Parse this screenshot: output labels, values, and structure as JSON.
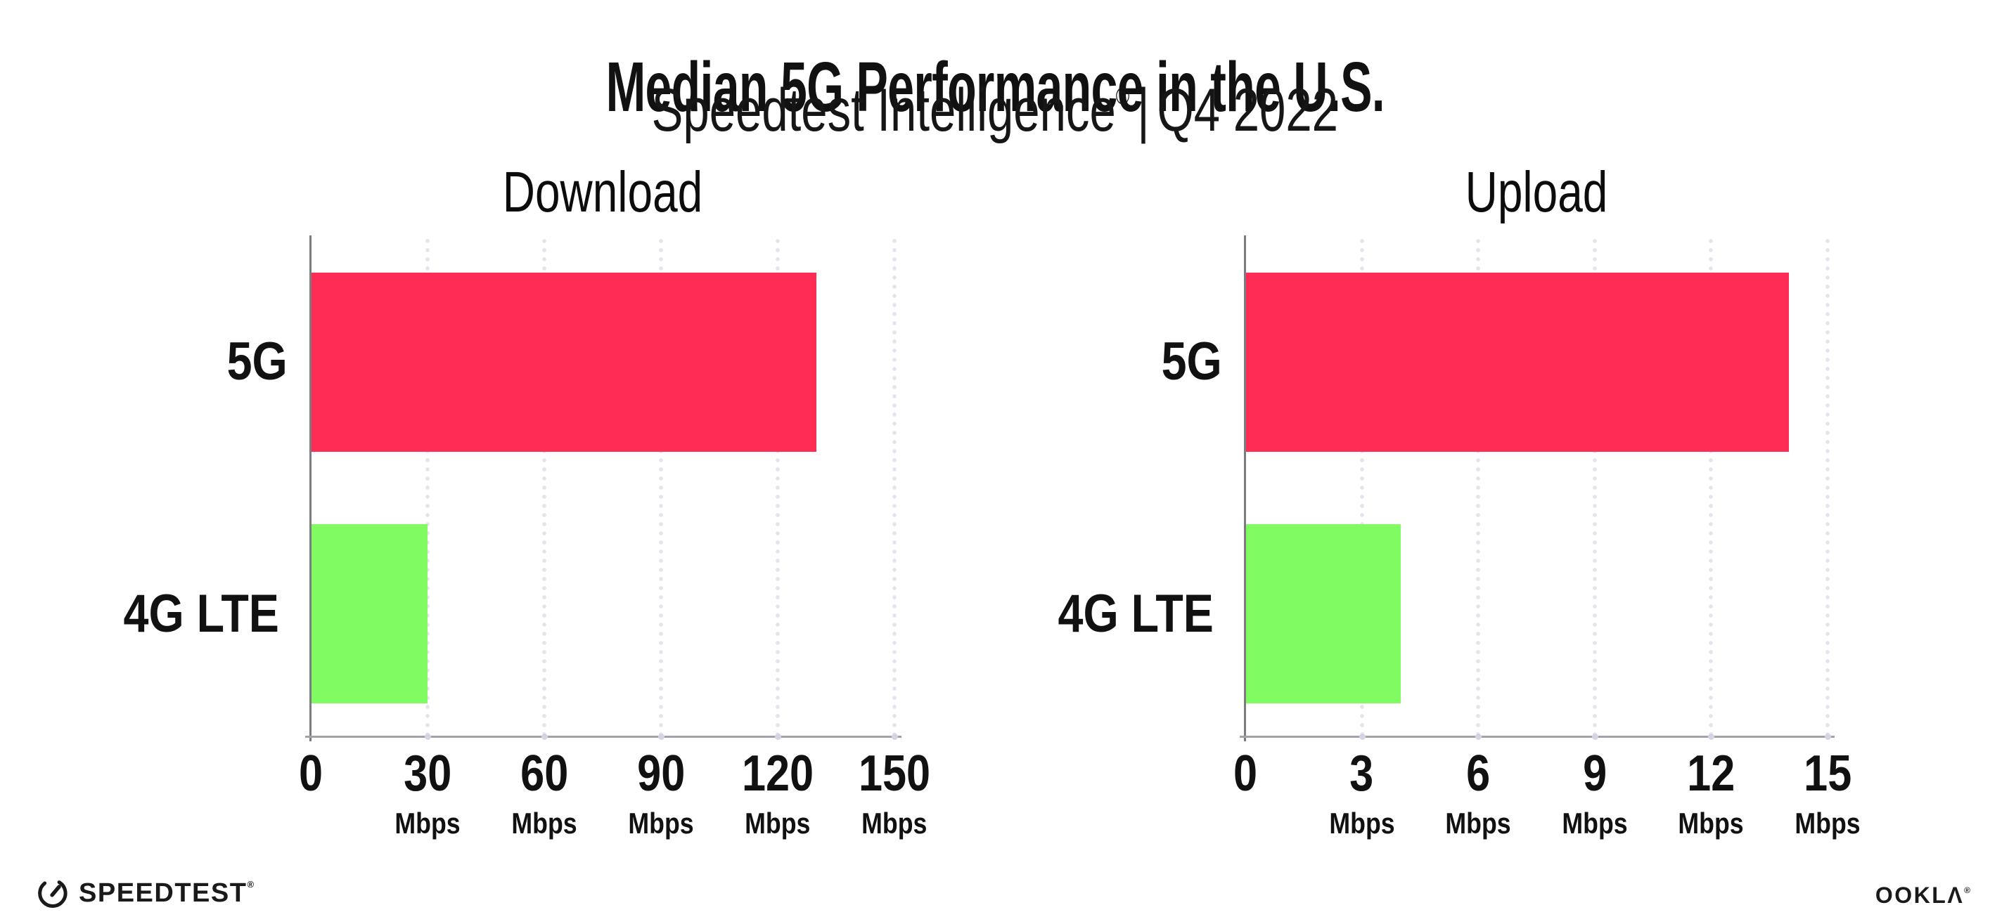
{
  "page": {
    "title": "Median 5G Performance in the U.S.",
    "subtitle_product": "Speedtest Intelligence",
    "subtitle_reg": "®",
    "subtitle_sep": "|",
    "subtitle_period": "Q4 2022"
  },
  "footer": {
    "speedtest_wordmark": "SPEEDTEST",
    "speedtest_reg": "®",
    "ookla_wordmark": "OOKLΛ",
    "ookla_reg": "®"
  },
  "colors": {
    "bar_5g": "#FF2D55",
    "bar_4g_lte": "#80FB62",
    "gridline": "#E4E4EF",
    "axis_line": "#A2A2A8",
    "axis_spine": "#7C7C80",
    "tick_dot": "#D4D4E2",
    "text": "#111111"
  },
  "chart_data": [
    {
      "type": "bar",
      "orientation": "horizontal",
      "title": "Download",
      "categories": [
        "5G",
        "4G LTE"
      ],
      "values": [
        130,
        30
      ],
      "value_unit": "Mbps",
      "xlim": [
        0,
        150
      ],
      "xticks": [
        0,
        30,
        60,
        90,
        120,
        150
      ],
      "xtick_unit_label": "Mbps",
      "bar_colors": [
        "#FF2D55",
        "#80FB62"
      ],
      "grid": "dotted-vertical",
      "legend": "none"
    },
    {
      "type": "bar",
      "orientation": "horizontal",
      "title": "Upload",
      "categories": [
        "5G",
        "4G LTE"
      ],
      "values": [
        14,
        4
      ],
      "value_unit": "Mbps",
      "xlim": [
        0,
        15
      ],
      "xticks": [
        0,
        3,
        6,
        9,
        12,
        15
      ],
      "xtick_unit_label": "Mbps",
      "bar_colors": [
        "#FF2D55",
        "#80FB62"
      ],
      "grid": "dotted-vertical",
      "legend": "none"
    }
  ]
}
